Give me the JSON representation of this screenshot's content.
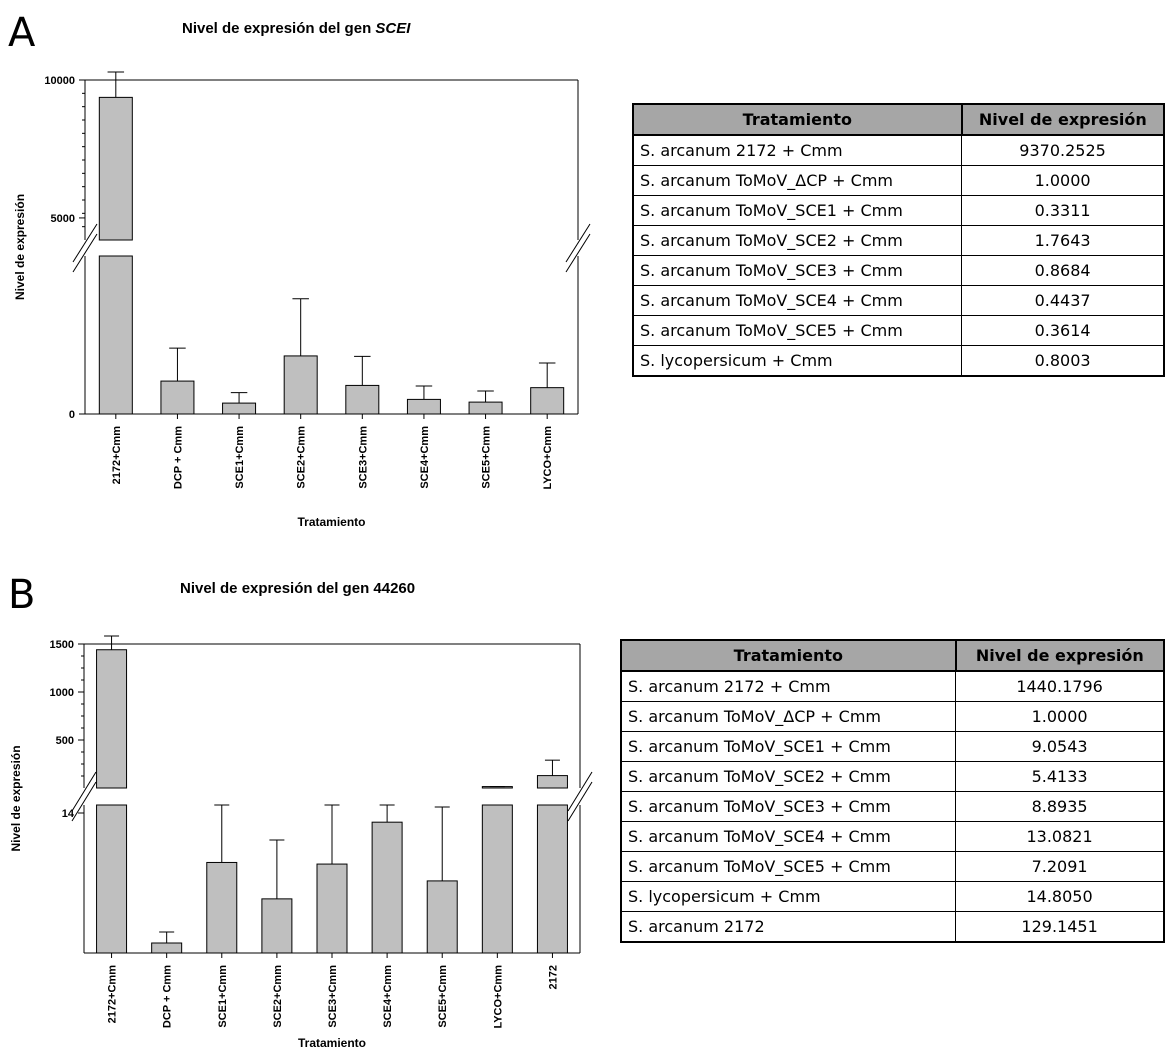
{
  "panels": [
    {
      "letter": "A",
      "title_prefix": "Nivel de expresión del gen ",
      "title_gene": "SCEI",
      "ylabel": "Nivel de expresión",
      "xlabel": "Tratamiento",
      "table": {
        "headers": [
          "Tratamiento",
          "Nivel de expresión"
        ],
        "rows": [
          [
            "S. arcanum 2172 + Cmm",
            "9370.2525"
          ],
          [
            "S. arcanum ToMoV_ΔCP + Cmm",
            "1.0000"
          ],
          [
            "S. arcanum ToMoV_SCE1 + Cmm",
            "0.3311"
          ],
          [
            "S. arcanum ToMoV_SCE2 + Cmm",
            "1.7643"
          ],
          [
            "S. arcanum ToMoV_SCE3 + Cmm",
            "0.8684"
          ],
          [
            "S. arcanum ToMoV_SCE4 + Cmm",
            "0.4437"
          ],
          [
            "S. arcanum ToMoV_SCE5 + Cmm",
            "0.3614"
          ],
          [
            "S. lycopersicum + Cmm",
            "0.8003"
          ]
        ]
      }
    },
    {
      "letter": "B",
      "title_prefix": "Nivel de expresión del gen 44260",
      "title_gene": "",
      "ylabel": "Nivel de expresión",
      "xlabel": "Tratamiento",
      "table": {
        "headers": [
          "Tratamiento",
          "Nivel de expresión"
        ],
        "rows": [
          [
            "S. arcanum 2172 + Cmm",
            "1440.1796"
          ],
          [
            "S. arcanum ToMoV_ΔCP + Cmm",
            "1.0000"
          ],
          [
            "S. arcanum ToMoV_SCE1 + Cmm",
            "9.0543"
          ],
          [
            "S. arcanum ToMoV_SCE2 + Cmm",
            "5.4133"
          ],
          [
            "S. arcanum ToMoV_SCE3 + Cmm",
            "8.8935"
          ],
          [
            "S. arcanum ToMoV_SCE4 + Cmm",
            "13.0821"
          ],
          [
            "S. arcanum ToMoV_SCE5 + Cmm",
            "7.2091"
          ],
          [
            "S. lycopersicum + Cmm",
            "14.8050"
          ],
          [
            "S. arcanum 2172",
            "129.1451"
          ]
        ]
      }
    }
  ],
  "chart_data": [
    {
      "type": "bar",
      "title": "Nivel de expresión del gen SCEI",
      "xlabel": "Tratamiento",
      "ylabel": "Nivel de expresión",
      "categories": [
        "2172+Cmm",
        "DCP + Cmm",
        "SCE1+Cmm",
        "SCE2+Cmm",
        "SCE3+Cmm",
        "SCE4+Cmm",
        "SCE5+Cmm",
        "LYCO+Cmm"
      ],
      "values": [
        9370.2525,
        1.0,
        0.3311,
        1.7643,
        0.8684,
        0.4437,
        0.3614,
        0.8003
      ],
      "error_upper": [
        10500,
        2.0,
        0.65,
        3.5,
        1.75,
        0.85,
        0.7,
        1.55
      ],
      "axis_break": {
        "lower_max": 4.8,
        "upper_min": 4200
      },
      "lower_ticks": [
        {
          "value": 0,
          "label": "0"
        }
      ],
      "upper_ticks": [
        {
          "value": 5000,
          "label": "5000"
        },
        {
          "value": 10000,
          "label": "10000"
        }
      ],
      "upper_ylim": [
        4200,
        10000
      ]
    },
    {
      "type": "bar",
      "title": "Nivel de expresión del gen 44260",
      "xlabel": "Tratamiento",
      "ylabel": "Nivel de expresión",
      "categories": [
        "2172+Cmm",
        "DCP + Cmm",
        "SCE1+Cmm",
        "SCE2+Cmm",
        "SCE3+Cmm",
        "SCE4+Cmm",
        "SCE5+Cmm",
        "LYCO+Cmm",
        "2172"
      ],
      "values": [
        1440.1796,
        1.0,
        9.0543,
        5.4133,
        8.8935,
        13.0821,
        7.2091,
        14.805,
        129.1451
      ],
      "error_upper": [
        1600,
        2.1,
        14.8,
        11.3,
        14.8,
        14.8,
        14.6,
        14.8,
        290
      ],
      "axis_break": {
        "lower_max": 14.8,
        "upper_min": 0
      },
      "lower_ticks": [
        {
          "value": 14,
          "label": "14"
        }
      ],
      "upper_ticks": [
        {
          "value": 500,
          "label": "500"
        },
        {
          "value": 1000,
          "label": "1000"
        },
        {
          "value": 1500,
          "label": "1500"
        }
      ],
      "upper_ylim": [
        0,
        1500
      ]
    }
  ]
}
